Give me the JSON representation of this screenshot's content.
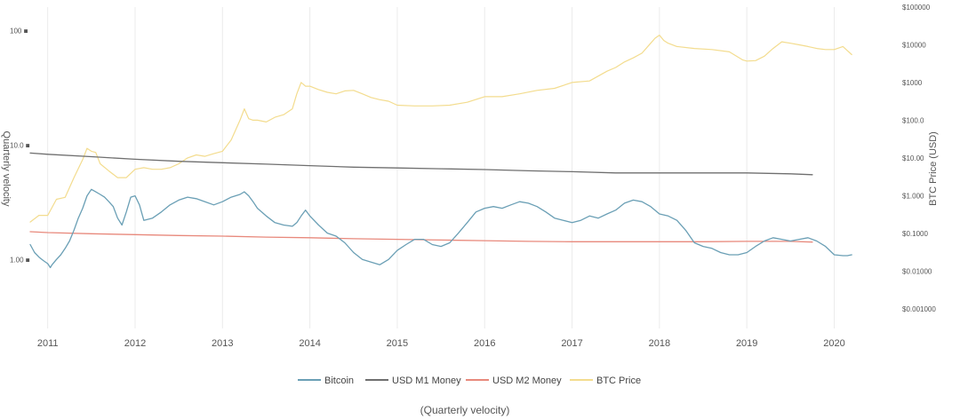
{
  "chart_data": {
    "type": "line",
    "caption": "(Quarterly velocity)",
    "y_left_label": "Quarterly velocity",
    "y_right_label": "BTC Price (USD)",
    "y_left_scale": "log",
    "y_right_scale": "log",
    "y_left_ticks": [
      {
        "value": 100,
        "label": "100 ■"
      },
      {
        "value": 10,
        "label": "10.0 ■"
      },
      {
        "value": 1,
        "label": "1.00 ■"
      }
    ],
    "y_right_ticks": [
      {
        "value": 100000,
        "label": "$100000"
      },
      {
        "value": 10000,
        "label": "$10000"
      },
      {
        "value": 1000,
        "label": "$1000"
      },
      {
        "value": 100,
        "label": "$100.0"
      },
      {
        "value": 10,
        "label": "$10.00"
      },
      {
        "value": 1,
        "label": "$1.000"
      },
      {
        "value": 0.1,
        "label": "$0.1000"
      },
      {
        "value": 0.01,
        "label": "$0.01000"
      },
      {
        "value": 0.001,
        "label": "$0.001000"
      }
    ],
    "x_ticks": [
      "2011",
      "2012",
      "2013",
      "2014",
      "2015",
      "2016",
      "2017",
      "2018",
      "2019",
      "2020"
    ],
    "xlim": [
      2010.8,
      2020.3
    ],
    "ylim_left": [
      0.25,
      160
    ],
    "ylim_right": [
      0.0003,
      100000
    ],
    "grid": "vertical",
    "legend_position": "bottom",
    "series": [
      {
        "name": "Bitcoin",
        "axis": "left",
        "color": "#6a9fb5",
        "x": [
          2010.8,
          2010.85,
          2010.9,
          2010.95,
          2011.0,
          2011.03,
          2011.05,
          2011.1,
          2011.15,
          2011.2,
          2011.25,
          2011.3,
          2011.35,
          2011.4,
          2011.45,
          2011.5,
          2011.55,
          2011.6,
          2011.65,
          2011.7,
          2011.75,
          2011.8,
          2011.85,
          2011.9,
          2011.95,
          2012.0,
          2012.05,
          2012.1,
          2012.2,
          2012.3,
          2012.4,
          2012.5,
          2012.6,
          2012.7,
          2012.8,
          2012.9,
          2013.0,
          2013.1,
          2013.2,
          2013.25,
          2013.3,
          2013.35,
          2013.4,
          2013.5,
          2013.6,
          2013.7,
          2013.8,
          2013.85,
          2013.9,
          2013.95,
          2014.0,
          2014.1,
          2014.2,
          2014.3,
          2014.4,
          2014.5,
          2014.6,
          2014.7,
          2014.8,
          2014.9,
          2015.0,
          2015.1,
          2015.2,
          2015.3,
          2015.4,
          2015.5,
          2015.6,
          2015.7,
          2015.8,
          2015.9,
          2016.0,
          2016.1,
          2016.2,
          2016.3,
          2016.4,
          2016.5,
          2016.6,
          2016.7,
          2016.8,
          2016.9,
          2017.0,
          2017.1,
          2017.2,
          2017.3,
          2017.4,
          2017.5,
          2017.6,
          2017.7,
          2017.8,
          2017.9,
          2018.0,
          2018.1,
          2018.2,
          2018.3,
          2018.4,
          2018.5,
          2018.6,
          2018.7,
          2018.8,
          2018.9,
          2019.0,
          2019.1,
          2019.2,
          2019.3,
          2019.4,
          2019.5,
          2019.6,
          2019.7,
          2019.8,
          2019.9,
          2020.0,
          2020.1,
          2020.15,
          2020.2
        ],
        "values": [
          1.35,
          1.15,
          1.05,
          0.98,
          0.92,
          0.85,
          0.9,
          1.0,
          1.1,
          1.25,
          1.45,
          1.8,
          2.3,
          2.8,
          3.6,
          4.1,
          3.9,
          3.7,
          3.5,
          3.2,
          2.9,
          2.3,
          2.0,
          2.6,
          3.5,
          3.6,
          3.0,
          2.2,
          2.3,
          2.6,
          3.0,
          3.3,
          3.5,
          3.4,
          3.2,
          3.0,
          3.2,
          3.5,
          3.7,
          3.9,
          3.6,
          3.2,
          2.8,
          2.4,
          2.1,
          2.0,
          1.95,
          2.1,
          2.4,
          2.7,
          2.4,
          2.0,
          1.7,
          1.6,
          1.4,
          1.15,
          1.0,
          0.95,
          0.9,
          1.0,
          1.2,
          1.35,
          1.5,
          1.5,
          1.35,
          1.3,
          1.4,
          1.7,
          2.1,
          2.6,
          2.8,
          2.9,
          2.8,
          3.0,
          3.2,
          3.1,
          2.9,
          2.6,
          2.3,
          2.2,
          2.1,
          2.2,
          2.4,
          2.3,
          2.5,
          2.7,
          3.1,
          3.3,
          3.2,
          2.9,
          2.5,
          2.4,
          2.2,
          1.8,
          1.4,
          1.3,
          1.25,
          1.15,
          1.1,
          1.1,
          1.15,
          1.3,
          1.45,
          1.55,
          1.5,
          1.45,
          1.5,
          1.55,
          1.45,
          1.3,
          1.1,
          1.08,
          1.08,
          1.1
        ]
      },
      {
        "name": "USD M1 Money",
        "axis": "left",
        "color": "#6f6f6f",
        "x": [
          2010.8,
          2011.0,
          2011.5,
          2012.0,
          2012.5,
          2013.0,
          2013.5,
          2014.0,
          2014.5,
          2015.0,
          2015.5,
          2016.0,
          2016.5,
          2017.0,
          2017.5,
          2018.0,
          2018.5,
          2019.0,
          2019.5,
          2019.75
        ],
        "values": [
          8.5,
          8.3,
          7.9,
          7.5,
          7.2,
          7.0,
          6.8,
          6.6,
          6.4,
          6.3,
          6.2,
          6.1,
          5.95,
          5.85,
          5.7,
          5.7,
          5.7,
          5.7,
          5.6,
          5.5
        ]
      },
      {
        "name": "USD M2 Money",
        "axis": "left",
        "color": "#e8897c",
        "x": [
          2010.8,
          2011.0,
          2011.5,
          2012.0,
          2012.5,
          2013.0,
          2013.5,
          2014.0,
          2014.5,
          2015.0,
          2015.5,
          2016.0,
          2016.5,
          2017.0,
          2017.5,
          2018.0,
          2018.5,
          2019.0,
          2019.5,
          2019.75
        ],
        "values": [
          1.75,
          1.72,
          1.68,
          1.65,
          1.62,
          1.6,
          1.57,
          1.55,
          1.52,
          1.5,
          1.48,
          1.46,
          1.44,
          1.43,
          1.43,
          1.43,
          1.43,
          1.44,
          1.44,
          1.42
        ]
      },
      {
        "name": "BTC Price",
        "axis": "right",
        "color": "#f3dc8e",
        "x": [
          2010.8,
          2010.9,
          2011.0,
          2011.1,
          2011.2,
          2011.3,
          2011.4,
          2011.45,
          2011.5,
          2011.55,
          2011.6,
          2011.7,
          2011.8,
          2011.9,
          2012.0,
          2012.1,
          2012.2,
          2012.3,
          2012.4,
          2012.5,
          2012.6,
          2012.7,
          2012.8,
          2012.9,
          2013.0,
          2013.1,
          2013.2,
          2013.25,
          2013.3,
          2013.35,
          2013.4,
          2013.5,
          2013.6,
          2013.7,
          2013.8,
          2013.85,
          2013.9,
          2013.95,
          2014.0,
          2014.1,
          2014.2,
          2014.3,
          2014.4,
          2014.5,
          2014.6,
          2014.7,
          2014.8,
          2014.9,
          2015.0,
          2015.2,
          2015.4,
          2015.6,
          2015.8,
          2016.0,
          2016.2,
          2016.4,
          2016.6,
          2016.8,
          2017.0,
          2017.2,
          2017.4,
          2017.5,
          2017.6,
          2017.7,
          2017.8,
          2017.9,
          2017.95,
          2018.0,
          2018.05,
          2018.1,
          2018.2,
          2018.4,
          2018.6,
          2018.8,
          2018.95,
          2019.0,
          2019.1,
          2019.2,
          2019.3,
          2019.4,
          2019.5,
          2019.6,
          2019.7,
          2019.8,
          2019.9,
          2020.0,
          2020.1,
          2020.15,
          2020.2
        ],
        "values": [
          0.2,
          0.3,
          0.3,
          0.8,
          0.9,
          3.0,
          9.0,
          18.0,
          15.0,
          14.0,
          7.0,
          4.5,
          3.0,
          3.0,
          5.0,
          5.5,
          5.0,
          5.0,
          5.5,
          7.0,
          10.0,
          12.0,
          11.0,
          13.0,
          15.0,
          30.0,
          100.0,
          200.0,
          110.0,
          100.0,
          100.0,
          90.0,
          120.0,
          140.0,
          200.0,
          500.0,
          1000.0,
          800.0,
          800.0,
          650.0,
          550.0,
          500.0,
          600.0,
          620.0,
          500.0,
          400.0,
          350.0,
          320.0,
          250.0,
          240.0,
          240.0,
          250.0,
          300.0,
          420.0,
          420.0,
          500.0,
          620.0,
          700.0,
          1000.0,
          1100.0,
          2000.0,
          2500.0,
          3500.0,
          4500.0,
          6000.0,
          11000.0,
          15000.0,
          18000.0,
          13000.0,
          11000.0,
          9000.0,
          8000.0,
          7500.0,
          6500.0,
          4000.0,
          3700.0,
          3800.0,
          5000.0,
          8000.0,
          12000.0,
          11000.0,
          10000.0,
          9000.0,
          8000.0,
          7500.0,
          7500.0,
          9000.0,
          7000.0,
          5500.0
        ]
      }
    ]
  }
}
